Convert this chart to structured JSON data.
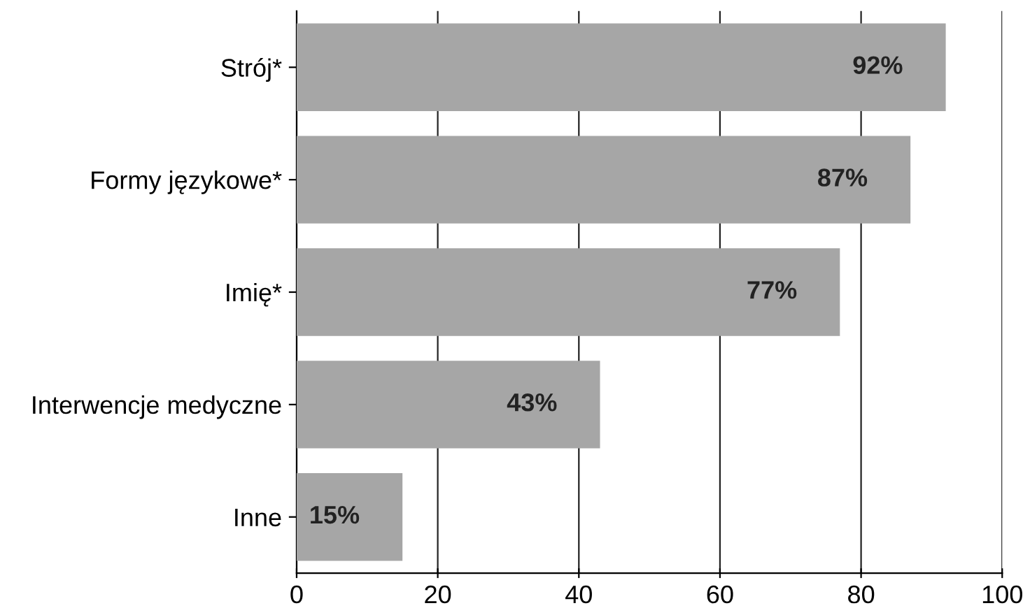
{
  "chart_data": {
    "type": "bar",
    "orientation": "horizontal",
    "categories": [
      "Strój*",
      "Formy językowe*",
      "Imię*",
      "Interwencje medyczne",
      "Inne"
    ],
    "values": [
      92,
      87,
      77,
      43,
      15
    ],
    "color": "#a6a6a6",
    "value_labels": [
      "92%",
      "87%",
      "77%",
      "43%",
      "15%"
    ],
    "xlim": [
      0,
      100
    ],
    "xticks": [
      0,
      20,
      40,
      60,
      80,
      100
    ],
    "grid": "x"
  }
}
